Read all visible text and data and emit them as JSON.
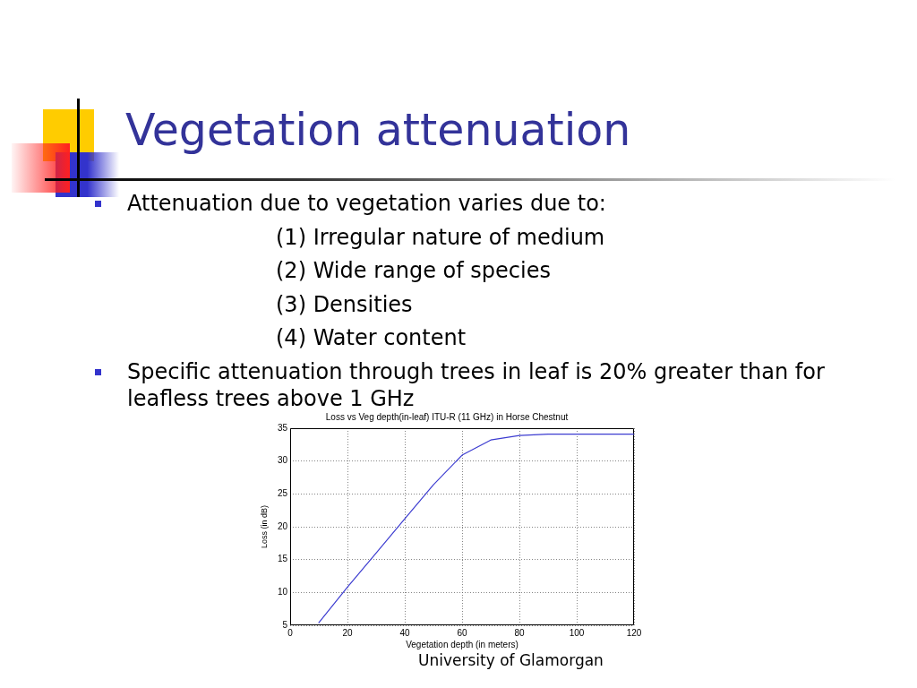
{
  "chart_data": {
    "type": "line",
    "title": "Vegetation attenuation",
    "subtitle": "Loss vs Veg depth(in-leaf) ITU-R (11 GHz) in Horse Chestnut",
    "xlabel": "Vegetation depth (in meters)",
    "ylabel": "Loss (in dB)",
    "x": [
      10,
      20,
      30,
      40,
      50,
      60,
      70,
      80,
      90,
      100,
      110,
      120
    ],
    "series": [
      {
        "color": "#3c3cd0",
        "values": [
          5.4,
          10.8,
          16.0,
          21.2,
          26.4,
          30.9,
          33.2,
          33.9,
          34.1,
          34.1,
          34.1,
          34.1
        ]
      }
    ],
    "xlim": [
      0,
      120
    ],
    "xticks": [
      0,
      20,
      40,
      60,
      80,
      100,
      120
    ],
    "ylim": [
      5,
      35
    ],
    "yticks": [
      5,
      10,
      15,
      20,
      25,
      30,
      35
    ],
    "grid": true,
    "annotations": [
      "Attenuation due to vegetation varies due to:",
      "(1) Irregular nature of medium",
      "(2) Wide range of species",
      "(3) Densities",
      "(4) Water content",
      "Specific attenuation through trees in leaf is 20% greater than for leafless trees above 1 GHz",
      "University of Glamorgan"
    ]
  }
}
